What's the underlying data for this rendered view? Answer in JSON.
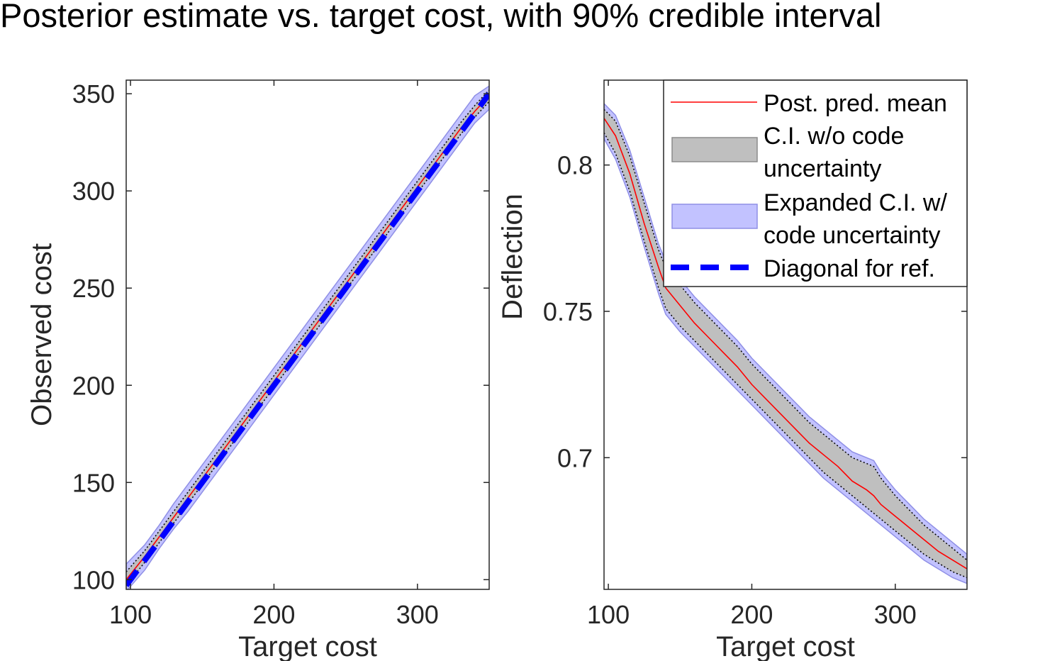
{
  "figure_title": "Posterior estimate vs. target cost, with 90% credible interval",
  "colors": {
    "mean_line": "#ff0000",
    "ci_fill": "#bfbfbf",
    "ci_edge": "#000000",
    "expanded_fill": "#c2c2ff",
    "expanded_edge": "#8f8fe6",
    "diagonal": "#0000ff",
    "axis": "#262626"
  },
  "chart_data": [
    {
      "type": "line",
      "title": "",
      "xlabel": "Target cost",
      "ylabel": "Observed cost",
      "xlim": [
        97,
        350
      ],
      "ylim": [
        95,
        357
      ],
      "xticks": [
        100,
        200,
        300
      ],
      "xtick_labels": [
        "100",
        "200",
        "300"
      ],
      "yticks": [
        100,
        150,
        200,
        250,
        300,
        350
      ],
      "ytick_labels": [
        "100",
        "150",
        "200",
        "250",
        "300",
        "350"
      ],
      "grid": false,
      "x": [
        97,
        110,
        120,
        130,
        140,
        150,
        160,
        170,
        180,
        190,
        200,
        210,
        220,
        230,
        240,
        250,
        260,
        270,
        280,
        290,
        300,
        310,
        320,
        330,
        340,
        350
      ],
      "series": [
        {
          "name": "Post. pred. mean",
          "values": [
            100,
            112,
            122,
            132,
            142,
            152,
            162,
            172,
            182,
            192,
            202,
            212,
            222,
            232,
            242,
            252,
            262,
            272,
            282,
            292,
            302,
            312,
            322,
            332,
            341,
            349
          ]
        },
        {
          "name": "C.I. w/o code uncertainty",
          "lower": [
            97,
            109,
            119,
            129,
            139,
            149,
            159,
            169,
            179,
            189,
            199,
            209,
            219,
            229,
            239,
            249,
            259,
            269,
            279,
            289,
            299,
            309,
            319,
            329,
            338,
            346
          ],
          "upper": [
            104,
            115,
            125,
            135,
            145,
            155,
            165,
            175,
            185,
            195,
            205,
            215,
            225,
            235,
            245,
            255,
            265,
            275,
            285,
            295,
            305,
            315,
            325,
            335,
            344,
            352
          ]
        },
        {
          "name": "Expanded C.I. w/ code uncertainty",
          "lower": [
            94,
            105,
            116,
            126,
            135,
            145,
            155,
            165,
            175,
            185,
            195,
            205,
            215,
            225,
            235,
            245,
            255,
            265,
            275,
            285,
            295,
            305,
            315,
            325,
            335,
            342
          ],
          "upper": [
            108,
            118,
            128,
            139,
            149,
            159,
            169,
            179,
            189,
            199,
            209,
            219,
            229,
            239,
            249,
            259,
            269,
            279,
            289,
            299,
            309,
            319,
            329,
            339,
            349,
            354
          ]
        },
        {
          "name": "Diagonal for ref.",
          "values": [
            97,
            110,
            120,
            130,
            140,
            150,
            160,
            170,
            180,
            190,
            200,
            210,
            220,
            230,
            240,
            250,
            260,
            270,
            280,
            290,
            300,
            310,
            320,
            330,
            340,
            350
          ]
        }
      ]
    },
    {
      "type": "line",
      "title": "",
      "xlabel": "Target cost",
      "ylabel": "Deflection",
      "xlim": [
        97,
        350
      ],
      "ylim": [
        0.655,
        0.829
      ],
      "xticks": [
        100,
        200,
        300
      ],
      "xtick_labels": [
        "100",
        "200",
        "300"
      ],
      "yticks": [
        0.7,
        0.75,
        0.8
      ],
      "ytick_labels": [
        "0.7",
        "0.75",
        "0.8"
      ],
      "grid": false,
      "legend_position": "top-right",
      "x": [
        97,
        105,
        115,
        125,
        135,
        140,
        150,
        160,
        170,
        180,
        190,
        200,
        210,
        220,
        230,
        240,
        250,
        260,
        270,
        280,
        285,
        290,
        300,
        310,
        320,
        330,
        340,
        350
      ],
      "series": [
        {
          "name": "Post. pred. mean",
          "values": [
            0.816,
            0.81,
            0.797,
            0.78,
            0.765,
            0.758,
            0.752,
            0.746,
            0.741,
            0.736,
            0.731,
            0.725,
            0.72,
            0.715,
            0.71,
            0.705,
            0.701,
            0.697,
            0.692,
            0.689,
            0.687,
            0.684,
            0.68,
            0.676,
            0.672,
            0.668,
            0.665,
            0.662
          ]
        },
        {
          "name": "C.I. w/o code uncertainty",
          "lower": [
            0.811,
            0.804,
            0.791,
            0.774,
            0.758,
            0.751,
            0.745,
            0.74,
            0.735,
            0.73,
            0.725,
            0.72,
            0.715,
            0.71,
            0.705,
            0.7,
            0.695,
            0.691,
            0.687,
            0.683,
            0.681,
            0.679,
            0.675,
            0.671,
            0.667,
            0.664,
            0.661,
            0.659
          ],
          "upper": [
            0.819,
            0.815,
            0.803,
            0.787,
            0.771,
            0.765,
            0.759,
            0.753,
            0.748,
            0.743,
            0.738,
            0.732,
            0.727,
            0.722,
            0.717,
            0.712,
            0.708,
            0.704,
            0.7,
            0.698,
            0.697,
            0.693,
            0.687,
            0.682,
            0.677,
            0.673,
            0.669,
            0.665
          ]
        },
        {
          "name": "Expanded C.I. w/ code uncertainty",
          "lower": [
            0.809,
            0.802,
            0.789,
            0.772,
            0.756,
            0.749,
            0.743,
            0.738,
            0.733,
            0.728,
            0.723,
            0.718,
            0.713,
            0.708,
            0.703,
            0.698,
            0.693,
            0.689,
            0.685,
            0.681,
            0.679,
            0.677,
            0.673,
            0.669,
            0.665,
            0.662,
            0.659,
            0.657
          ],
          "upper": [
            0.821,
            0.817,
            0.805,
            0.789,
            0.773,
            0.767,
            0.761,
            0.755,
            0.75,
            0.745,
            0.74,
            0.734,
            0.729,
            0.724,
            0.719,
            0.714,
            0.71,
            0.706,
            0.702,
            0.7,
            0.699,
            0.695,
            0.689,
            0.684,
            0.679,
            0.675,
            0.671,
            0.667
          ]
        }
      ],
      "legend": [
        "Post. pred. mean",
        "C.I. w/o code uncertainty",
        "Expanded C.I. w/ code uncertainty",
        "Diagonal for ref."
      ]
    }
  ],
  "legend_labels": {
    "mean": "Post. pred. mean",
    "ci_line1": "C.I. w/o code",
    "ci_line2": "uncertainty",
    "expanded_line1": "Expanded C.I. w/",
    "expanded_line2": "code uncertainty",
    "diagonal": "Diagonal for ref."
  }
}
